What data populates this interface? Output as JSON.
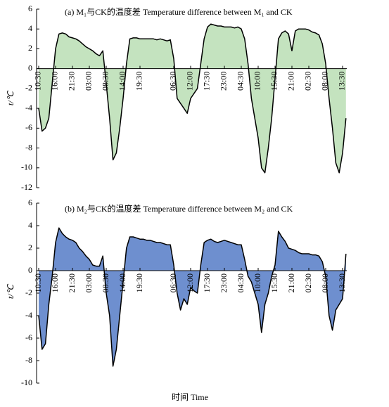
{
  "chart_data": [
    {
      "type": "area",
      "title": "(a) M₁与CK的温度差 Temperature difference between M₁ and CK",
      "ylabel": "t/℃",
      "color": "#c4e3bf",
      "line_color": "#000000",
      "categories": [
        "10:30",
        null,
        null,
        null,
        null,
        "16:00",
        null,
        null,
        null,
        null,
        "21:30",
        null,
        null,
        null,
        null,
        "03:00",
        null,
        null,
        null,
        null,
        "08:30",
        null,
        null,
        null,
        null,
        "14:00",
        null,
        null,
        null,
        null,
        "19:30",
        null,
        null,
        null,
        null,
        null,
        null,
        null,
        null,
        null,
        "06:30",
        null,
        null,
        null,
        null,
        "12:00",
        null,
        null,
        null,
        null,
        "17:30",
        null,
        null,
        null,
        null,
        "23:00",
        null,
        null,
        null,
        null,
        "04:30",
        null,
        null,
        null,
        null,
        "10:00",
        null,
        null,
        null,
        null,
        "15:30",
        null,
        null,
        null,
        null,
        "21:00",
        null,
        null,
        null,
        null,
        "02:30",
        null,
        null,
        null,
        null,
        "08:00",
        null,
        null,
        null,
        null,
        "13:30",
        null
      ],
      "values": [
        -4,
        -6.3,
        -6,
        -5,
        -1.5,
        2,
        3.5,
        3.6,
        3.5,
        3.2,
        3.1,
        3,
        2.8,
        2.5,
        2.2,
        2,
        1.8,
        1.5,
        1.3,
        1.8,
        -1.5,
        -5,
        -9.2,
        -8.5,
        -6,
        -3,
        0.5,
        3,
        3.1,
        3.1,
        3,
        3,
        3,
        3,
        3,
        2.9,
        3,
        2.9,
        2.8,
        2.9,
        1,
        -3,
        -3.5,
        -4,
        -4.5,
        -3,
        -2.5,
        -2,
        0.5,
        3,
        4.2,
        4.5,
        4.4,
        4.3,
        4.3,
        4.2,
        4.2,
        4.2,
        4.1,
        4.2,
        4,
        3,
        0.5,
        -3,
        -5,
        -7,
        -10,
        -10.5,
        -8,
        -5,
        -1,
        3,
        3.6,
        3.8,
        3.5,
        1.8,
        3.8,
        4,
        4,
        4,
        3.9,
        3.7,
        3.6,
        3.4,
        2.5,
        0.5,
        -3,
        -6,
        -9.5,
        -10.5,
        -8.5,
        -5
      ],
      "ylim": [
        -12,
        6
      ],
      "yticks": [
        -12,
        -10,
        -8,
        -6,
        -4,
        -2,
        0,
        2,
        4,
        6
      ]
    },
    {
      "type": "area",
      "title": "(b) M₂与CK的温度差 Temperature difference between M₂ and CK",
      "ylabel": "t/℃",
      "color": "#6e8fcf",
      "line_color": "#000000",
      "categories": [
        "10:30",
        null,
        null,
        null,
        null,
        "16:00",
        null,
        null,
        null,
        null,
        "21:30",
        null,
        null,
        null,
        null,
        "03:00",
        null,
        null,
        null,
        null,
        "08:30",
        null,
        null,
        null,
        null,
        "14:00",
        null,
        null,
        null,
        null,
        "19:30",
        null,
        null,
        null,
        null,
        null,
        null,
        null,
        null,
        null,
        "06:30",
        null,
        null,
        null,
        null,
        "12:00",
        null,
        null,
        null,
        null,
        "17:30",
        null,
        null,
        null,
        null,
        "23:00",
        null,
        null,
        null,
        null,
        "04:30",
        null,
        null,
        null,
        null,
        "10:00",
        null,
        null,
        null,
        null,
        "15:30",
        null,
        null,
        null,
        null,
        "21:00",
        null,
        null,
        null,
        null,
        "02:30",
        null,
        null,
        null,
        null,
        "08:00",
        null,
        null,
        null,
        null,
        "13:30",
        null
      ],
      "values": [
        -4,
        -7,
        -6.5,
        -3,
        -0.5,
        2.5,
        3.8,
        3.3,
        3,
        2.8,
        2.7,
        2.5,
        2,
        1.7,
        1.3,
        1,
        0.5,
        0.4,
        0.4,
        1.3,
        -2,
        -4,
        -8.5,
        -7,
        -4,
        -1,
        2,
        3,
        3,
        2.9,
        2.8,
        2.8,
        2.7,
        2.7,
        2.6,
        2.5,
        2.5,
        2.4,
        2.3,
        2.3,
        0.5,
        -2,
        -3.5,
        -2.5,
        -3,
        -1.5,
        -1.8,
        -2,
        0.5,
        2.5,
        2.7,
        2.8,
        2.6,
        2.5,
        2.6,
        2.7,
        2.6,
        2.5,
        2.4,
        2.3,
        2.3,
        1,
        -0.5,
        -1,
        -2,
        -3,
        -5.5,
        -3,
        -2,
        -0.5,
        0.5,
        3.5,
        3,
        2.6,
        2,
        1.9,
        1.8,
        1.6,
        1.5,
        1.5,
        1.5,
        1.4,
        1.4,
        1.3,
        0.8,
        -0.5,
        -4,
        -5.3,
        -3.5,
        -3,
        -2.5,
        1.5
      ],
      "ylim": [
        -10,
        6
      ],
      "yticks": [
        -10,
        -8,
        -6,
        -4,
        -2,
        0,
        2,
        4,
        6
      ]
    }
  ],
  "xlabel": "时间 Time"
}
